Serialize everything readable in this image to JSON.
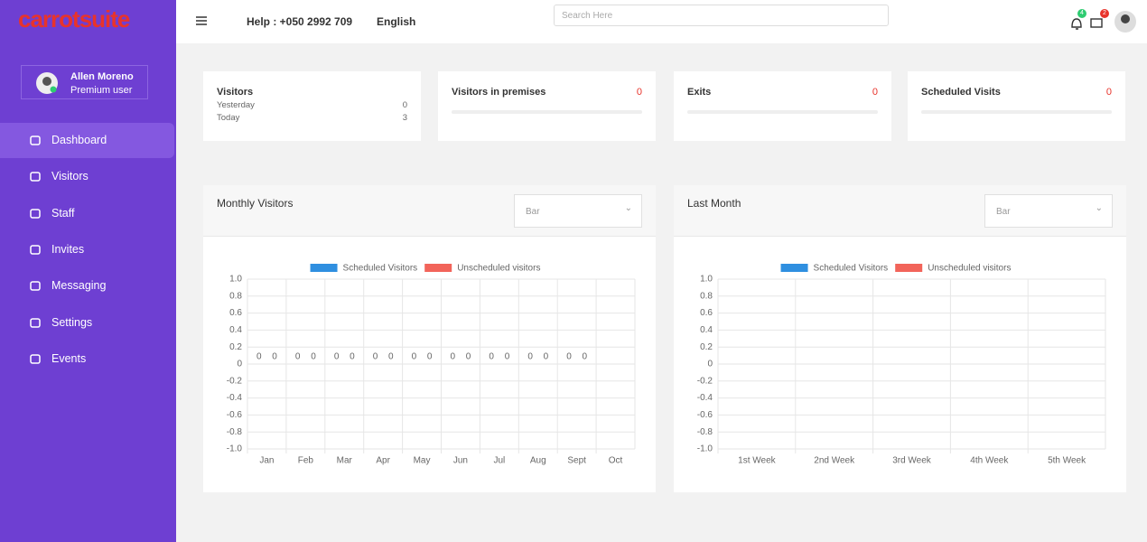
{
  "logo": "carrotsuite",
  "header": {
    "help": "Help : +050 2992 709",
    "language": "English",
    "search_placeholder": "Search Here",
    "notifications": "4",
    "messages": "2"
  },
  "user": {
    "name": "Allen Moreno",
    "role": "Premium user"
  },
  "nav": [
    "Dashboard",
    "Visitors",
    "Staff",
    "Invites",
    "Messaging",
    "Settings",
    "Events"
  ],
  "cards": [
    {
      "title": "Visitors",
      "rows": [
        {
          "label": "Yesterday",
          "value": 0
        },
        {
          "label": "Today",
          "value": 3
        }
      ]
    },
    {
      "title": "Visitors in premises",
      "value": 0
    },
    {
      "title": "Exits",
      "value": 0
    },
    {
      "title": "Scheduled Visits",
      "value": 0
    }
  ],
  "chart_data": [
    {
      "type": "bar",
      "title": "Monthly Visitors",
      "selector": "Bar",
      "categories": [
        "Jan",
        "Feb",
        "Mar",
        "Apr",
        "May",
        "Jun",
        "Jul",
        "Aug",
        "Sept",
        "Oct"
      ],
      "series": [
        {
          "name": "Scheduled Visitors",
          "color": "#2f8fe0",
          "values": [
            0,
            0,
            0,
            0,
            0,
            0,
            0,
            0,
            0,
            null
          ]
        },
        {
          "name": "Unscheduled visitors",
          "color": "#f2645a",
          "values": [
            0,
            0,
            0,
            0,
            0,
            0,
            0,
            0,
            0,
            null
          ]
        }
      ],
      "ylim": [
        -1,
        1
      ],
      "yticks": [
        {
          "value": -1,
          "label": "-1.0"
        },
        -0.8,
        -0.6,
        -0.4,
        -0.2,
        0,
        0.2,
        0.4,
        0.6,
        0.8,
        {
          "value": 1,
          "label": "1.0"
        }
      ],
      "grid": true,
      "legend": "top"
    },
    {
      "type": "bar",
      "title": "Last Month",
      "selector": "Bar",
      "categories": [
        "1st Week",
        "2nd Week",
        "3rd Week",
        "4th Week",
        "5th Week"
      ],
      "series": [
        {
          "name": "Scheduled Visitors",
          "color": "#2f8fe0",
          "values": [
            null,
            null,
            null,
            null,
            null
          ]
        },
        {
          "name": "Unscheduled visitors",
          "color": "#f2645a",
          "values": [
            null,
            null,
            null,
            null,
            null
          ]
        }
      ],
      "ylim": [
        -1,
        1
      ],
      "yticks": [
        {
          "value": -1,
          "label": "-1.0"
        },
        -0.8,
        -0.6,
        -0.4,
        -0.2,
        0,
        0.2,
        0.4,
        0.6,
        0.8,
        {
          "value": 1,
          "label": "1.0"
        }
      ],
      "grid": true,
      "legend": "top"
    }
  ]
}
